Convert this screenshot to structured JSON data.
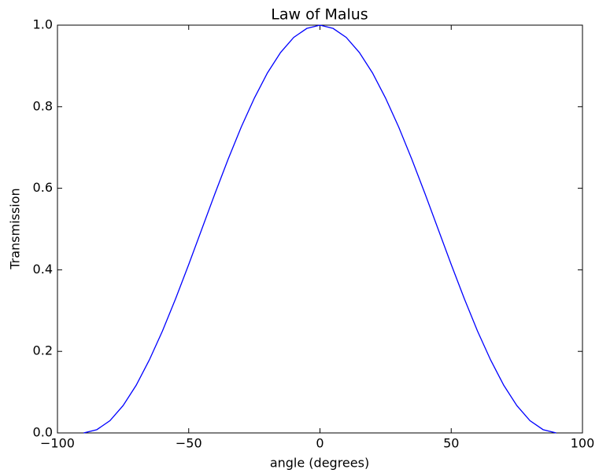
{
  "chart_data": {
    "type": "line",
    "title": "Law of Malus",
    "x_label": "angle (degrees)",
    "y_label": "Transmission",
    "x": [
      -90,
      -85,
      -80,
      -75,
      -70,
      -65,
      -60,
      -55,
      -50,
      -45,
      -40,
      -35,
      -30,
      -25,
      -20,
      -15,
      -10,
      -5,
      0,
      5,
      10,
      15,
      20,
      25,
      30,
      35,
      40,
      45,
      50,
      55,
      60,
      65,
      70,
      75,
      80,
      85,
      90
    ],
    "series": [
      {
        "name": "cos^2",
        "color": "#0000ff",
        "values": [
          0,
          0.008,
          0.03,
          0.067,
          0.117,
          0.179,
          0.25,
          0.329,
          0.413,
          0.5,
          0.587,
          0.671,
          0.75,
          0.821,
          0.883,
          0.933,
          0.97,
          0.992,
          1,
          0.992,
          0.97,
          0.933,
          0.883,
          0.821,
          0.75,
          0.671,
          0.587,
          0.5,
          0.413,
          0.329,
          0.25,
          0.179,
          0.117,
          0.067,
          0.03,
          0.008,
          0
        ]
      }
    ],
    "xlim": [
      -100,
      100
    ],
    "xticks": [
      {
        "value": -100,
        "label": "−100"
      },
      {
        "value": -50,
        "label": "−50"
      },
      0,
      50,
      100
    ],
    "ylim": [
      0,
      1
    ],
    "yticks": [
      {
        "value": 0,
        "label": "0.0"
      },
      0.2,
      0.4,
      0.6,
      0.8,
      {
        "value": 1,
        "label": "1.0"
      }
    ],
    "grid": false
  }
}
